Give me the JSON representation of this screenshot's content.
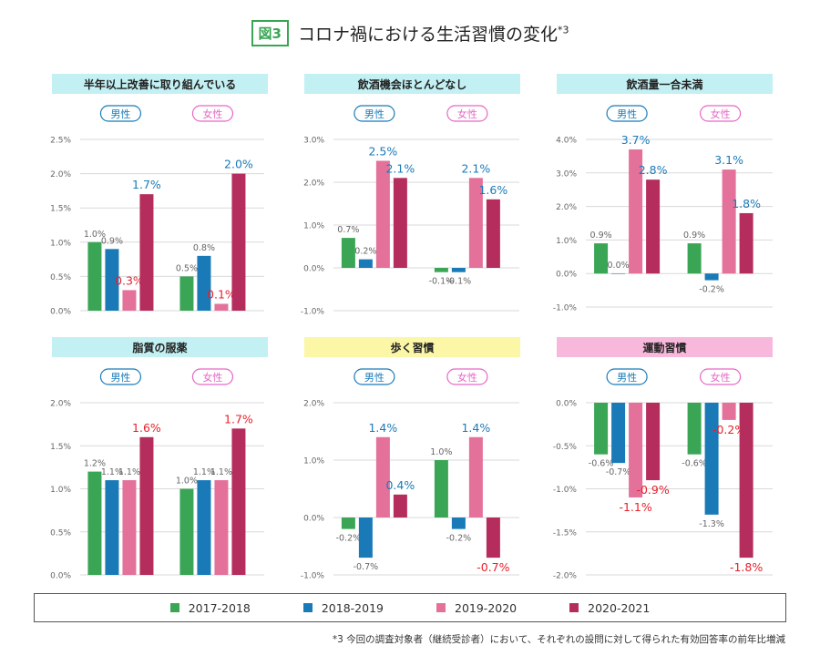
{
  "header": {
    "badge": "図3",
    "title": "コロナ禍における生活習慣の変化",
    "title_sup": "*3"
  },
  "colors": {
    "2017-2018": "#3aa655",
    "2018-2019": "#1a7ab8",
    "2019-2020": "#e3719a",
    "2020-2021": "#b52d5c",
    "male_label": "#1a7ab8",
    "female_label": "#e667c4",
    "highlight_label": "#e81f2a",
    "cyan_panel": "#c3f0f3",
    "yellow_panel": "#fbf7a6",
    "pink_panel": "#f8b8dc"
  },
  "legend": {
    "items": [
      "2017-2018",
      "2018-2019",
      "2019-2020",
      "2020-2021"
    ]
  },
  "footnote": "*3 今回の調査対象者（継続受診者）において、それぞれの設問に対して得られた有効回答率の前年比増減",
  "chart_data": [
    {
      "type": "bar",
      "title": "半年以上改善に取り組んでいる",
      "groups": [
        "男性",
        "女性"
      ],
      "series_names": [
        "2017-2018",
        "2018-2019",
        "2019-2020",
        "2020-2021"
      ],
      "values": [
        [
          1.0,
          0.9,
          0.3,
          1.7
        ],
        [
          0.5,
          0.8,
          0.1,
          2.0
        ]
      ],
      "labels": [
        [
          "1.0%",
          "0.9%",
          "0.3%",
          "1.7%"
        ],
        [
          "0.5%",
          "0.8%",
          "0.1%",
          "2.0%"
        ]
      ],
      "ylim": [
        0,
        2.5
      ],
      "yticks": [
        "0.0%",
        "0.5%",
        "1.0%",
        "1.5%",
        "2.0%",
        "2.5%"
      ]
    },
    {
      "type": "bar",
      "title": "飲酒機会ほとんどなし",
      "groups": [
        "男性",
        "女性"
      ],
      "series_names": [
        "2017-2018",
        "2018-2019",
        "2019-2020",
        "2020-2021"
      ],
      "values": [
        [
          0.7,
          0.2,
          2.5,
          2.1
        ],
        [
          -0.1,
          -0.1,
          2.1,
          1.6
        ]
      ],
      "labels": [
        [
          "0.7%",
          "0.2%",
          "2.5%",
          "2.1%"
        ],
        [
          "-0.1%",
          "-0.1%",
          "2.1%",
          "1.6%"
        ]
      ],
      "ylim": [
        -1.0,
        3.0
      ],
      "yticks": [
        "-1.0%",
        "0.0%",
        "1.0%",
        "2.0%",
        "3.0%"
      ]
    },
    {
      "type": "bar",
      "title": "飲酒量一合未満",
      "groups": [
        "男性",
        "女性"
      ],
      "series_names": [
        "2017-2018",
        "2018-2019",
        "2019-2020",
        "2020-2021"
      ],
      "values": [
        [
          0.9,
          0.0,
          3.7,
          2.8
        ],
        [
          0.9,
          -0.2,
          3.1,
          1.8
        ]
      ],
      "labels": [
        [
          "0.9%",
          "0.0%",
          "3.7%",
          "2.8%"
        ],
        [
          "0.9%",
          "-0.2%",
          "3.1%",
          "1.8%"
        ]
      ],
      "ylim": [
        -1.0,
        4.0
      ],
      "yticks": [
        "-1.0%",
        "0.0%",
        "1.0%",
        "2.0%",
        "3.0%",
        "4.0%"
      ]
    },
    {
      "type": "bar",
      "title": "脂質の服薬",
      "groups": [
        "男性",
        "女性"
      ],
      "series_names": [
        "2017-2018",
        "2018-2019",
        "2019-2020",
        "2020-2021"
      ],
      "values": [
        [
          1.2,
          1.1,
          1.1,
          1.6
        ],
        [
          1.0,
          1.1,
          1.1,
          1.7
        ]
      ],
      "labels": [
        [
          "1.2%",
          "1.1%",
          "1.1%",
          "1.6%"
        ],
        [
          "1.0%",
          "1.1%",
          "1.1%",
          "1.7%"
        ]
      ],
      "ylim": [
        0,
        2.0
      ],
      "yticks": [
        "0.0%",
        "0.5%",
        "1.0%",
        "1.5%",
        "2.0%"
      ]
    },
    {
      "type": "bar",
      "title": "歩く習慣",
      "groups": [
        "男性",
        "女性"
      ],
      "series_names": [
        "2017-2018",
        "2018-2019",
        "2019-2020",
        "2020-2021"
      ],
      "values": [
        [
          -0.2,
          -0.7,
          1.4,
          0.4
        ],
        [
          1.0,
          -0.2,
          1.4,
          -0.7
        ]
      ],
      "labels": [
        [
          "-0.2%",
          "-0.7%",
          "1.4%",
          "0.4%"
        ],
        [
          "1.0%",
          "-0.2%",
          "1.4%",
          "-0.7%"
        ]
      ],
      "ylim": [
        -1.0,
        2.0
      ],
      "yticks": [
        "-1.0%",
        "0.0%",
        "1.0%",
        "2.0%"
      ]
    },
    {
      "type": "bar",
      "title": "運動習慣",
      "groups": [
        "男性",
        "女性"
      ],
      "series_names": [
        "2017-2018",
        "2018-2019",
        "2019-2020",
        "2020-2021"
      ],
      "values": [
        [
          -0.6,
          -0.7,
          -1.1,
          -0.9
        ],
        [
          -0.6,
          -1.3,
          -0.2,
          -1.8
        ]
      ],
      "labels": [
        [
          "-0.6%",
          "-0.7%",
          "-1.1%",
          "-0.9%"
        ],
        [
          "-0.6%",
          "-1.3%",
          "-0.2%",
          "-1.8%"
        ]
      ],
      "ylim": [
        -2.0,
        0.0
      ],
      "yticks": [
        "-2.0%",
        "-1.5%",
        "-1.0%",
        "-0.5%",
        "0.0%"
      ]
    }
  ]
}
